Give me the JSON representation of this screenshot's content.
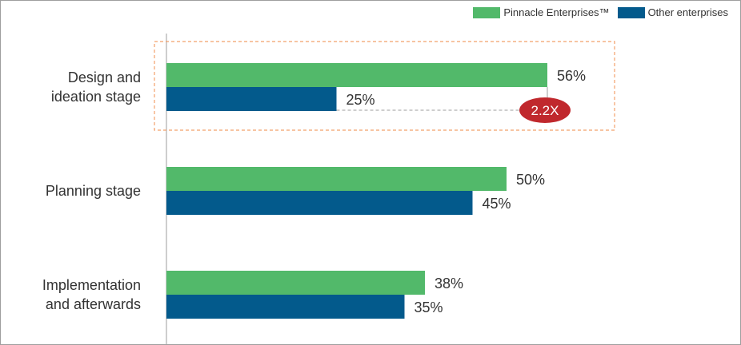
{
  "legend": {
    "placement": "top-right",
    "items": [
      {
        "label": "Pinnacle Enterprises™",
        "color": "#52b96a"
      },
      {
        "label": "Other enterprises",
        "color": "#035a8c"
      }
    ]
  },
  "chart_data": {
    "type": "bar",
    "orientation": "horizontal",
    "categories": [
      "Design and ideation stage",
      "Planning stage",
      "Implementation and afterwards"
    ],
    "category_lines": [
      [
        "Design and",
        "ideation stage"
      ],
      [
        "Planning stage"
      ],
      [
        "Implementation",
        "and afterwards"
      ]
    ],
    "series": [
      {
        "name": "Pinnacle Enterprises™",
        "color": "#52b96a",
        "values": [
          56,
          50,
          38
        ],
        "labels": [
          "56%",
          "50%",
          "38%"
        ]
      },
      {
        "name": "Other enterprises",
        "color": "#035a8c",
        "values": [
          25,
          45,
          35
        ],
        "labels": [
          "25%",
          "45%",
          "35%"
        ]
      }
    ],
    "xlim": [
      0,
      100
    ],
    "grid": false,
    "title": "",
    "xlabel": "",
    "ylabel": "",
    "annotation": {
      "category_index": 0,
      "text": "2.2X",
      "color": "#c0282d",
      "highlight_border": "#f2a06b"
    }
  }
}
